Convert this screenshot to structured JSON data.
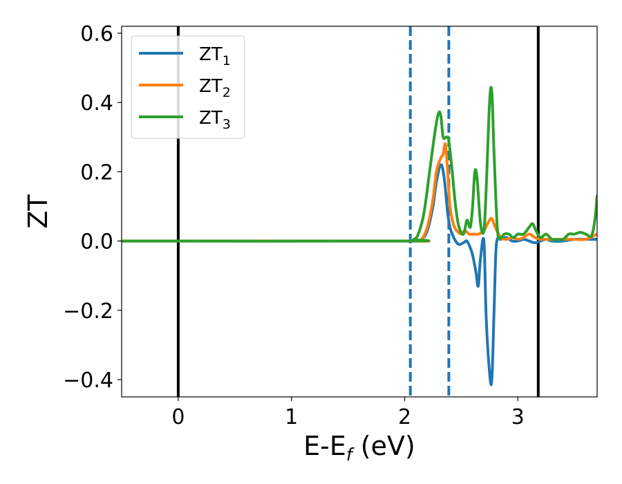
{
  "chart_data": {
    "type": "line",
    "title": "",
    "xlabel": {
      "main": "E-E",
      "sub": "f",
      "suffix": " (eV)"
    },
    "ylabel": "ZT",
    "xlim": [
      -0.5,
      3.7
    ],
    "ylim": [
      -0.45,
      0.62
    ],
    "xticks": [
      0,
      1,
      2,
      3
    ],
    "xtick_labels": [
      "0",
      "1",
      "2",
      "3"
    ],
    "yticks": [
      -0.4,
      -0.2,
      0.0,
      0.2,
      0.4,
      0.6
    ],
    "ytick_labels": [
      "−0.4",
      "−0.2",
      "0.0",
      "0.2",
      "0.4",
      "0.6"
    ],
    "grid": false,
    "legend": {
      "placement": "top-left",
      "entries": [
        {
          "main": "ZT",
          "sub": "1",
          "color": "#1f77b4"
        },
        {
          "main": "ZT",
          "sub": "2",
          "color": "#ff7f0e"
        },
        {
          "main": "ZT",
          "sub": "3",
          "color": "#2ca02c"
        }
      ]
    },
    "vlines": [
      {
        "x": 0.0,
        "style": "solid",
        "color": "#000000"
      },
      {
        "x": 3.18,
        "style": "solid",
        "color": "#000000"
      },
      {
        "x": 2.05,
        "style": "dashed",
        "color": "#1f77b4"
      },
      {
        "x": 2.39,
        "style": "dashed",
        "color": "#1f77b4"
      }
    ],
    "series": [
      {
        "name": "ZT₁",
        "color": "#1f77b4",
        "x": [
          -0.5,
          2.0,
          2.1,
          2.15,
          2.2,
          2.25,
          2.28,
          2.32,
          2.35,
          2.38,
          2.4,
          2.42,
          2.45,
          2.48,
          2.52,
          2.55,
          2.58,
          2.6,
          2.63,
          2.65,
          2.67,
          2.7,
          2.72,
          2.75,
          2.77,
          2.79,
          2.81,
          2.85,
          2.9,
          2.95,
          3.0,
          3.05,
          3.1,
          3.15,
          3.2,
          3.25,
          3.3,
          3.4,
          3.5,
          3.6,
          3.7
        ],
        "y": [
          0.0,
          0.0,
          0.0,
          0.005,
          0.03,
          0.1,
          0.17,
          0.22,
          0.18,
          0.08,
          0.04,
          0.02,
          0.0,
          -0.01,
          -0.005,
          0.0,
          -0.02,
          -0.04,
          -0.09,
          -0.13,
          -0.05,
          0.0,
          -0.22,
          -0.38,
          -0.4,
          -0.2,
          -0.01,
          0.005,
          0.01,
          0.0,
          0.0,
          0.005,
          0.0,
          -0.005,
          0.0,
          0.005,
          0.0,
          0.0,
          0.005,
          0.005,
          0.005
        ]
      },
      {
        "name": "ZT₂",
        "color": "#ff7f0e",
        "x": [
          -0.5,
          2.0,
          2.1,
          2.15,
          2.2,
          2.25,
          2.28,
          2.32,
          2.34,
          2.36,
          2.38,
          2.4,
          2.43,
          2.46,
          2.5,
          2.53,
          2.57,
          2.6,
          2.65,
          2.7,
          2.74,
          2.77,
          2.8,
          2.85,
          2.9,
          2.95,
          3.0,
          3.05,
          3.1,
          3.15,
          3.2,
          3.3,
          3.4,
          3.5,
          3.6,
          3.7
        ],
        "y": [
          0.0,
          0.0,
          0.0,
          0.005,
          0.04,
          0.12,
          0.2,
          0.24,
          0.25,
          0.28,
          0.2,
          0.1,
          0.05,
          0.03,
          0.02,
          0.03,
          0.02,
          0.02,
          0.02,
          0.03,
          0.055,
          0.065,
          0.04,
          0.01,
          0.005,
          0.01,
          0.005,
          0.01,
          0.02,
          0.01,
          0.005,
          0.005,
          0.005,
          0.005,
          0.005,
          0.02
        ]
      },
      {
        "name": "ZT₃",
        "color": "#2ca02c",
        "x": [
          -0.5,
          2.0,
          2.08,
          2.12,
          2.17,
          2.22,
          2.27,
          2.3,
          2.32,
          2.34,
          2.37,
          2.39,
          2.42,
          2.45,
          2.48,
          2.52,
          2.55,
          2.58,
          2.6,
          2.62,
          2.64,
          2.67,
          2.7,
          2.72,
          2.75,
          2.77,
          2.79,
          2.82,
          2.85,
          2.88,
          2.92,
          2.96,
          3.0,
          3.05,
          3.1,
          3.13,
          3.16,
          3.2,
          3.25,
          3.3,
          3.35,
          3.4,
          3.45,
          3.5,
          3.55,
          3.6,
          3.65,
          3.68,
          3.7
        ],
        "y": [
          0.0,
          0.0,
          0.005,
          0.02,
          0.08,
          0.2,
          0.32,
          0.37,
          0.36,
          0.3,
          0.3,
          0.29,
          0.2,
          0.1,
          0.04,
          0.02,
          0.06,
          0.04,
          0.1,
          0.2,
          0.18,
          0.05,
          0.03,
          0.15,
          0.4,
          0.43,
          0.25,
          0.03,
          0.01,
          0.02,
          0.02,
          0.01,
          0.02,
          0.02,
          0.04,
          0.05,
          0.03,
          0.01,
          0.02,
          0.005,
          0.005,
          0.005,
          0.02,
          0.02,
          0.025,
          0.02,
          0.015,
          0.06,
          0.13
        ]
      }
    ]
  }
}
